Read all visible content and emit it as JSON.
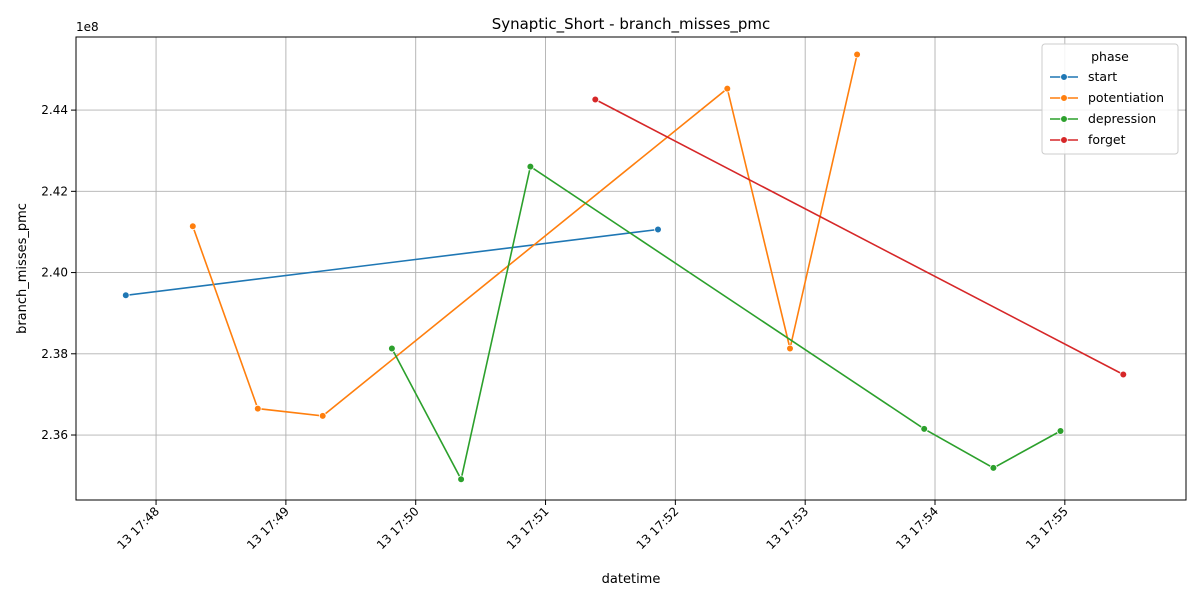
{
  "chart_data": {
    "type": "line",
    "title": "Synaptic_Short - branch_misses_pmc",
    "xlabel": "datetime",
    "ylabel": "branch_misses_pmc",
    "y_scale_label": "1e8",
    "grid": true,
    "legend_title": "phase",
    "legend_position": "top-right",
    "x_range": [
      "13 17:47:23",
      "13 17:55:56"
    ],
    "y_range": [
      234.4,
      245.8
    ],
    "y_multiplier": 100000000,
    "x_ticks": [
      {
        "label": "13 17:48",
        "time": "17:48:00"
      },
      {
        "label": "13 17:49",
        "time": "17:49:00"
      },
      {
        "label": "13 17:50",
        "time": "17:50:00"
      },
      {
        "label": "13 17:51",
        "time": "17:51:00"
      },
      {
        "label": "13 17:52",
        "time": "17:52:00"
      },
      {
        "label": "13 17:53",
        "time": "17:53:00"
      },
      {
        "label": "13 17:54",
        "time": "17:54:00"
      },
      {
        "label": "13 17:55",
        "time": "17:55:00"
      }
    ],
    "y_ticks": [
      {
        "label": "2.36",
        "value": 236
      },
      {
        "label": "2.38",
        "value": 238
      },
      {
        "label": "2.40",
        "value": 240
      },
      {
        "label": "2.42",
        "value": 242
      },
      {
        "label": "2.44",
        "value": 244
      }
    ],
    "series": [
      {
        "name": "start",
        "color": "#1f77b4",
        "points": [
          {
            "x": "17:47:46",
            "y": 239.44
          },
          {
            "x": "17:51:52",
            "y": 241.06
          }
        ]
      },
      {
        "name": "potentiation",
        "color": "#ff7f0e",
        "points": [
          {
            "x": "17:48:17",
            "y": 241.14
          },
          {
            "x": "17:48:47",
            "y": 236.65
          },
          {
            "x": "17:49:17",
            "y": 236.47
          },
          {
            "x": "17:52:24",
            "y": 244.53
          },
          {
            "x": "17:52:53",
            "y": 238.13
          },
          {
            "x": "17:53:24",
            "y": 245.37
          }
        ]
      },
      {
        "name": "depression",
        "color": "#2ca02c",
        "points": [
          {
            "x": "17:49:49",
            "y": 238.13
          },
          {
            "x": "17:50:21",
            "y": 234.91
          },
          {
            "x": "17:50:53",
            "y": 242.61
          },
          {
            "x": "17:53:55",
            "y": 236.15
          },
          {
            "x": "17:54:27",
            "y": 235.19
          },
          {
            "x": "17:54:58",
            "y": 236.1
          }
        ]
      },
      {
        "name": "forget",
        "color": "#d62728",
        "points": [
          {
            "x": "17:51:23",
            "y": 244.26
          },
          {
            "x": "17:55:27",
            "y": 237.49
          }
        ]
      }
    ]
  }
}
